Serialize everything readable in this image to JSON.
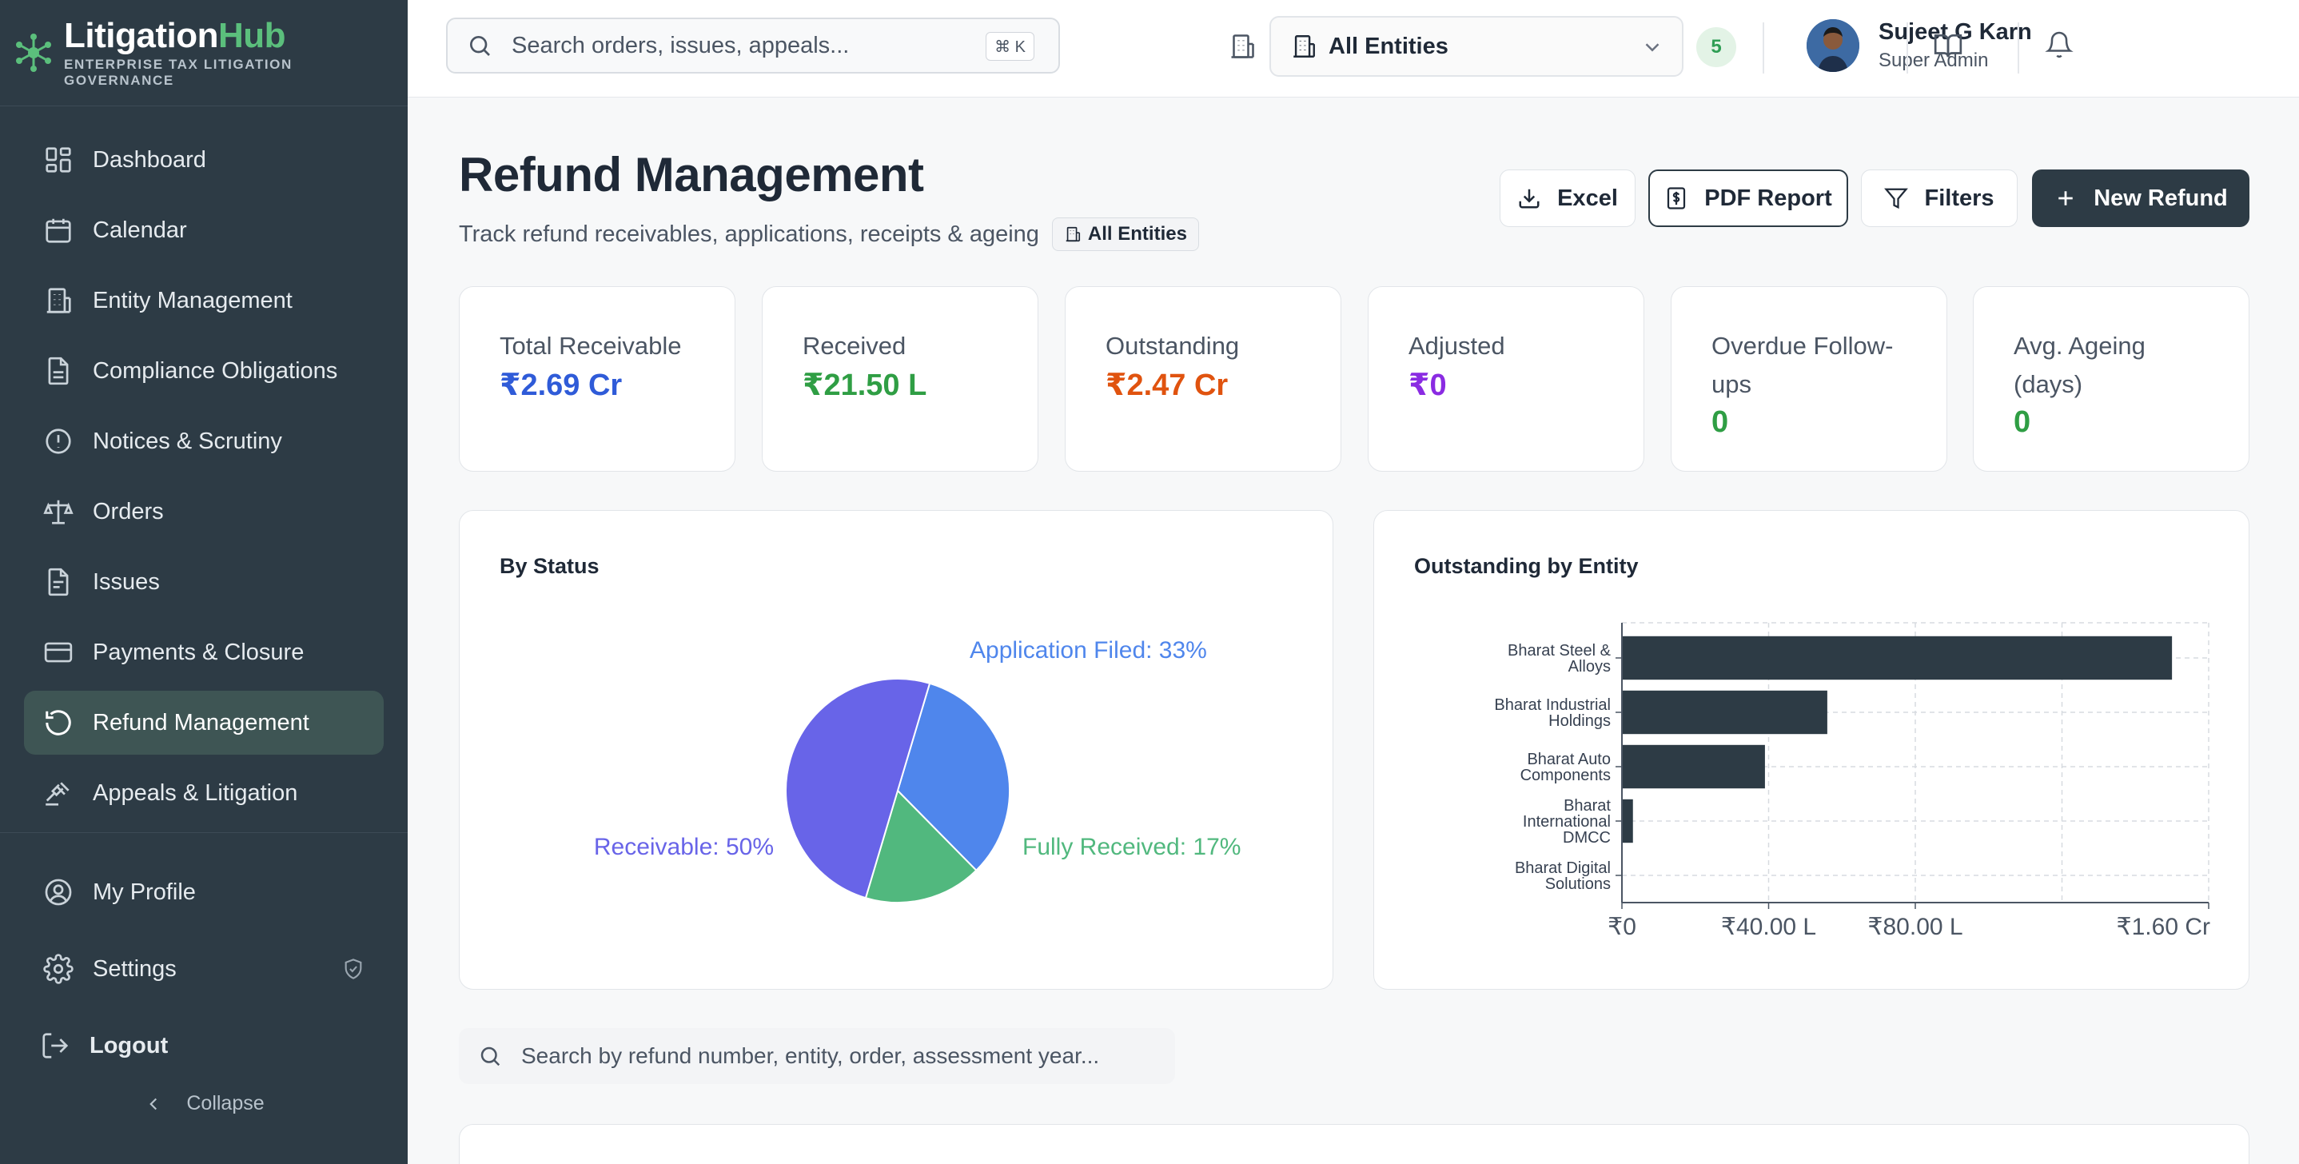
{
  "brand": {
    "name_main": "Litigation",
    "name_accent": "Hub",
    "tagline": "ENTERPRISE TAX LITIGATION GOVERNANCE"
  },
  "sidebar": {
    "items": [
      {
        "label": "Dashboard",
        "icon": "dashboard-icon"
      },
      {
        "label": "Calendar",
        "icon": "calendar-icon"
      },
      {
        "label": "Entity Management",
        "icon": "building-icon"
      },
      {
        "label": "Compliance Obligations",
        "icon": "document-icon"
      },
      {
        "label": "Notices & Scrutiny",
        "icon": "alert-circle-icon"
      },
      {
        "label": "Orders",
        "icon": "scale-icon"
      },
      {
        "label": "Issues",
        "icon": "file-text-icon"
      },
      {
        "label": "Payments & Closure",
        "icon": "credit-card-icon"
      },
      {
        "label": "Refund Management",
        "icon": "refresh-icon",
        "active": true
      },
      {
        "label": "Appeals & Litigation",
        "icon": "gavel-icon"
      }
    ],
    "bottom": {
      "profile": "My Profile",
      "settings": "Settings",
      "logout": "Logout",
      "collapse": "Collapse"
    }
  },
  "header": {
    "search_placeholder": "Search orders, issues, appeals...",
    "shortcut": "⌘ K",
    "entity_select": "All Entities",
    "entity_count": "5",
    "user": {
      "name": "Sujeet G Karn",
      "role": "Super Admin"
    }
  },
  "page": {
    "title": "Refund Management",
    "subtitle": "Track refund receivables, applications, receipts & ageing",
    "entity_chip": "All Entities"
  },
  "actions": {
    "excel": "Excel",
    "pdf": "PDF Report",
    "filters": "Filters",
    "new": "New Refund"
  },
  "stats": [
    {
      "label": "Total Receivable",
      "value": "₹2.69 Cr",
      "color": "#2f5bd8"
    },
    {
      "label": "Received",
      "value": "₹21.50 L",
      "color": "#2f9e44"
    },
    {
      "label": "Outstanding",
      "value": "₹2.47 Cr",
      "color": "#e0530f"
    },
    {
      "label": "Adjusted",
      "value": "₹0",
      "color": "#8a2be2"
    },
    {
      "label": "Overdue Follow-ups",
      "value": "0",
      "color": "#2f9e44"
    },
    {
      "label": "Avg. Ageing (days)",
      "value": "0",
      "color": "#2f9e44"
    }
  ],
  "chart_data": [
    {
      "type": "pie",
      "title": "By Status",
      "slices": [
        {
          "name": "Application Filed",
          "value": 33,
          "label": "Application Filed: 33%",
          "color": "#4f86ec"
        },
        {
          "name": "Fully Received",
          "value": 17,
          "label": "Fully Received: 17%",
          "color": "#51b87e"
        },
        {
          "name": "Receivable",
          "value": 50,
          "label": "Receivable: 50%",
          "color": "#6864e8"
        }
      ]
    },
    {
      "type": "bar",
      "orientation": "horizontal",
      "title": "Outstanding by Entity",
      "categories": [
        [
          "Bharat Steel &",
          "Alloys"
        ],
        [
          "Bharat Industrial",
          "Holdings"
        ],
        [
          "Bharat Auto",
          "Components"
        ],
        [
          "Bharat",
          "International",
          "DMCC"
        ],
        [
          "Bharat Digital",
          "Solutions"
        ]
      ],
      "values": [
        1.5,
        0.56,
        0.39,
        0.03,
        0
      ],
      "unit": "Cr",
      "xlim": [
        0,
        1.6
      ],
      "xticks": [
        {
          "value": 0,
          "label": "₹0"
        },
        {
          "value": 0.4,
          "label": "₹40.00 L"
        },
        {
          "value": 0.8,
          "label": "₹80.00 L"
        },
        {
          "value": 1.6,
          "label": "₹1.60 Cr"
        }
      ],
      "gridlines": [
        0,
        0.4,
        0.8,
        1.2,
        1.6
      ],
      "grid": true,
      "bar_color": "#2d3b45"
    }
  ],
  "table": {
    "search_placeholder": "Search by refund number, entity, order, assessment year..."
  }
}
